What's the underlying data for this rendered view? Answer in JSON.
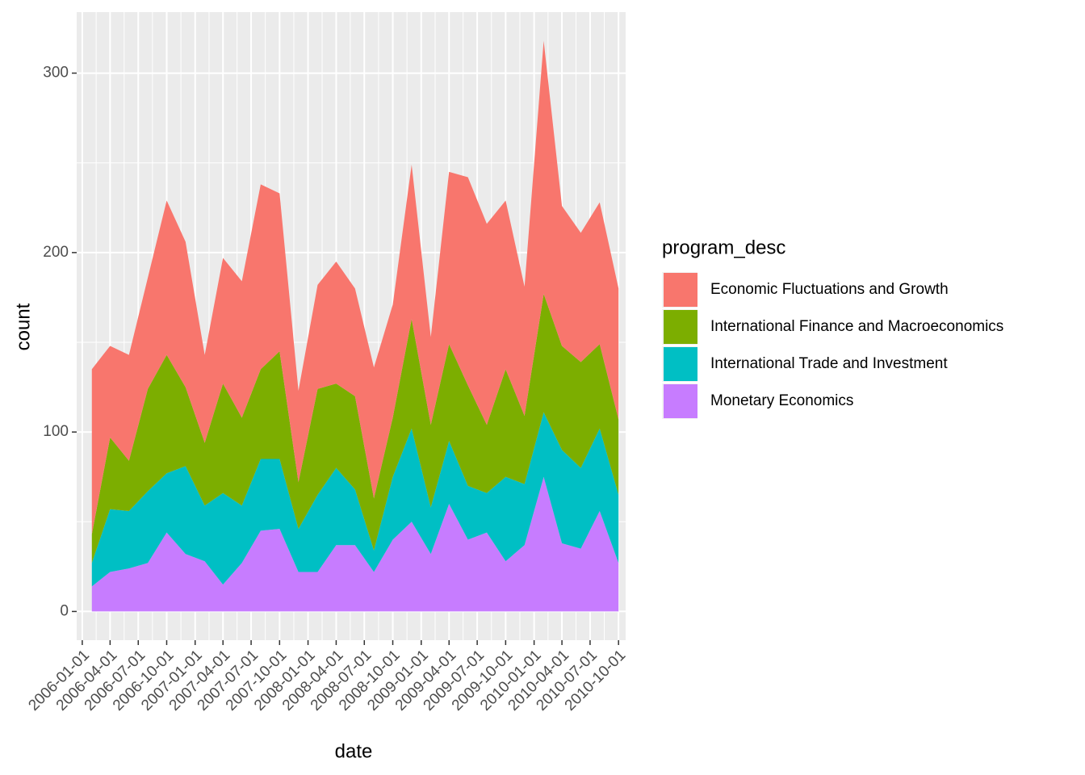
{
  "chart_data": {
    "type": "area",
    "stacked": true,
    "x_label": "date",
    "y_label": "count",
    "legend_title": "program_desc",
    "legend_position": "right",
    "grid": true,
    "x": [
      "2006-02-01",
      "2006-04-01",
      "2006-06-01",
      "2006-08-01",
      "2006-10-01",
      "2006-12-01",
      "2007-02-01",
      "2007-04-01",
      "2007-06-01",
      "2007-08-01",
      "2007-10-01",
      "2007-12-01",
      "2008-02-01",
      "2008-04-01",
      "2008-06-01",
      "2008-08-01",
      "2008-10-01",
      "2008-12-01",
      "2009-02-01",
      "2009-04-01",
      "2009-06-01",
      "2009-08-01",
      "2009-10-01",
      "2009-12-01",
      "2010-02-01",
      "2010-04-01",
      "2010-06-01",
      "2010-08-01",
      "2010-10-01"
    ],
    "series": [
      {
        "name": "Economic Fluctuations and Growth",
        "color": "#f8766d",
        "values": [
          92,
          51,
          59,
          62,
          86,
          81,
          49,
          70,
          76,
          103,
          88,
          51,
          58,
          68,
          60,
          73,
          63,
          86,
          49,
          96,
          116,
          112,
          94,
          72,
          141,
          78,
          72,
          79,
          73
        ]
      },
      {
        "name": "International Finance and Macroeconomics",
        "color": "#7cae00",
        "values": [
          16,
          40,
          28,
          57,
          66,
          44,
          35,
          61,
          49,
          50,
          60,
          26,
          59,
          47,
          52,
          29,
          33,
          61,
          46,
          54,
          56,
          38,
          60,
          38,
          66,
          58,
          59,
          47,
          42
        ]
      },
      {
        "name": "International Trade and Investment",
        "color": "#00bfc4",
        "values": [
          13,
          35,
          32,
          40,
          33,
          49,
          31,
          51,
          32,
          40,
          39,
          24,
          43,
          43,
          31,
          12,
          35,
          52,
          26,
          35,
          30,
          22,
          47,
          34,
          36,
          52,
          45,
          46,
          38
        ]
      },
      {
        "name": "Monetary Economics",
        "color": "#c77cff",
        "values": [
          14,
          22,
          24,
          27,
          44,
          32,
          28,
          15,
          27,
          45,
          46,
          22,
          22,
          37,
          37,
          22,
          40,
          50,
          32,
          60,
          40,
          44,
          28,
          37,
          75,
          38,
          35,
          56,
          27
        ]
      }
    ],
    "xlim": [
      "2005-12-14",
      "2010-10-24"
    ],
    "xticks": [
      "2006-01-01",
      "2006-04-01",
      "2006-07-01",
      "2006-10-01",
      "2007-01-01",
      "2007-04-01",
      "2007-07-01",
      "2007-10-01",
      "2008-01-01",
      "2008-04-01",
      "2008-07-01",
      "2008-10-01",
      "2009-01-01",
      "2009-04-01",
      "2009-07-01",
      "2009-10-01",
      "2010-01-01",
      "2010-04-01",
      "2010-07-01",
      "2010-10-01"
    ],
    "ylim": [
      -16,
      334
    ],
    "yticks": [
      0,
      100,
      200,
      300
    ]
  }
}
